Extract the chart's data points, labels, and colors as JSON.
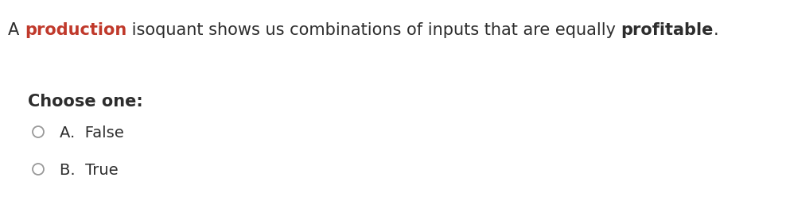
{
  "background_color": "#ffffff",
  "statement_parts": [
    {
      "text": "A ",
      "bold": false,
      "color": "#2d2d2d"
    },
    {
      "text": "production",
      "bold": true,
      "color": "#c0392b"
    },
    {
      "text": " isoquant shows us combinations of inputs that are equally ",
      "bold": false,
      "color": "#2d2d2d"
    },
    {
      "text": "profitable",
      "bold": true,
      "color": "#2d2d2d"
    },
    {
      "text": ".",
      "bold": false,
      "color": "#2d2d2d"
    }
  ],
  "choose_one_label": "Choose one:",
  "options": [
    {
      "label": "A.  False"
    },
    {
      "label": "B.  True"
    }
  ],
  "statement_fontsize": 15,
  "choose_one_fontsize": 15,
  "options_fontsize": 14,
  "circle_color": "#999999",
  "text_color": "#2d2d2d"
}
